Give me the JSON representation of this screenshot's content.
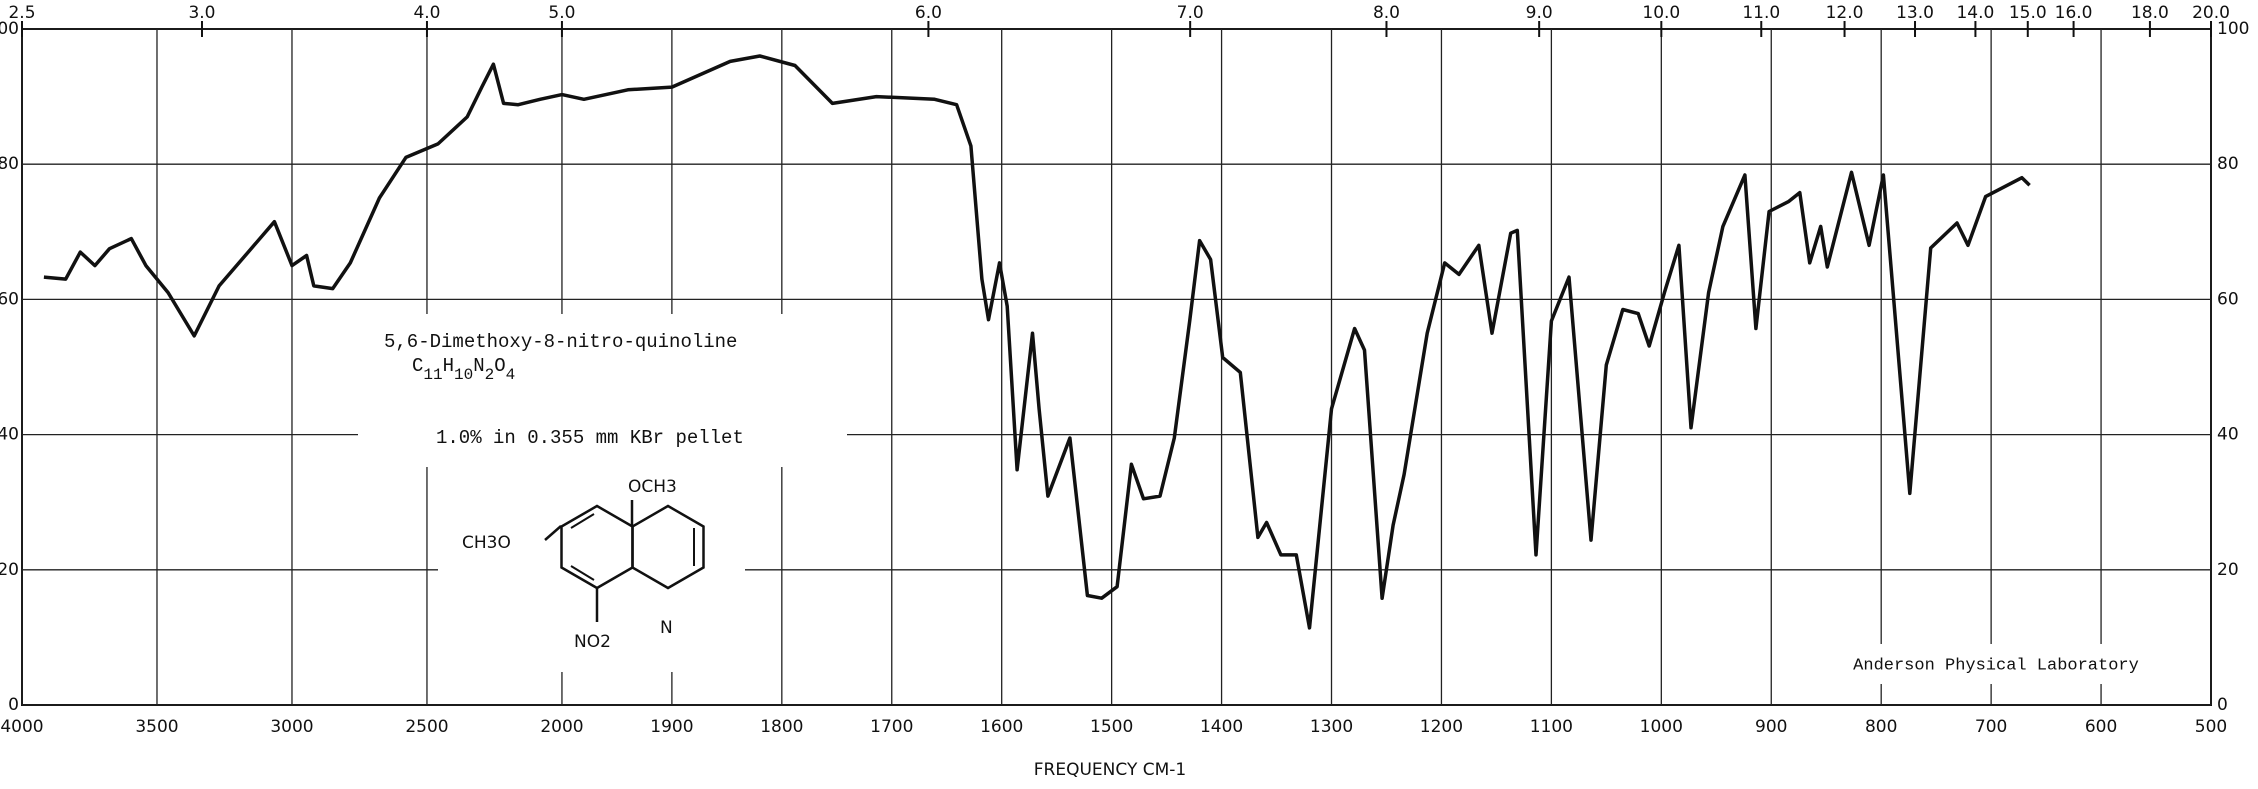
{
  "chart_data": {
    "type": "line",
    "x_label": "FREQUENCY   CM-1",
    "annotation": {
      "compound": "5,6-Dimethoxy-8-nitro-quinoline",
      "formula": [
        "C",
        "11",
        "H",
        "10",
        "N",
        "2",
        "O",
        "4"
      ],
      "sample": "1.0% in 0.355 mm  KBr pellet",
      "structure_labels": {
        "top": "OCH3",
        "left": "CH3O",
        "bottom": "NO2",
        "ring_n": "N"
      }
    },
    "stamp": "Anderson Physical Laboratory",
    "color": "#111111",
    "xlim": [
      4000,
      500
    ],
    "scale_change_at": 2000,
    "ylim": [
      0,
      100
    ],
    "xticks": [
      4000,
      3500,
      3000,
      2500,
      2000,
      1900,
      1800,
      1700,
      1600,
      1500,
      1400,
      1300,
      1200,
      1100,
      1000,
      900,
      800,
      700,
      600,
      500
    ],
    "yticks": [
      0,
      20,
      40,
      60,
      80,
      100
    ],
    "top_ticks": [
      {
        "value": 2.5,
        "label": "2.5"
      },
      {
        "value": 3,
        "label": "3.0"
      },
      {
        "value": 4,
        "label": "4.0"
      },
      {
        "value": 5,
        "label": "5.0"
      },
      {
        "value": 6,
        "label": "6.0"
      },
      {
        "value": 7,
        "label": "7.0"
      },
      {
        "value": 8,
        "label": "8.0"
      },
      {
        "value": 9,
        "label": "9.0"
      },
      {
        "value": 10,
        "label": "10.0"
      },
      {
        "value": 11,
        "label": "11.0"
      },
      {
        "value": 12,
        "label": "12.0"
      },
      {
        "value": 13,
        "label": "13.0"
      },
      {
        "value": 14,
        "label": "14.0"
      },
      {
        "value": 15,
        "label": "15.0"
      },
      {
        "value": 16,
        "label": "16.0"
      },
      {
        "value": 18,
        "label": "18.0"
      },
      {
        "value": 20,
        "label": "20.0"
      }
    ],
    "grid": true,
    "x": [
      3919,
      3838,
      3784,
      3730,
      3676,
      3595,
      3541,
      3459,
      3362,
      3270,
      3162,
      3065,
      3000,
      2946,
      2919,
      2849,
      2784,
      2676,
      2578,
      2459,
      2351,
      2297,
      2254,
      2216,
      2162,
      2081,
      2000,
      1980,
      1940,
      1900,
      1847,
      1820,
      1788,
      1754,
      1714,
      1661,
      1641,
      1628,
      1618,
      1612,
      1602,
      1595,
      1586,
      1572,
      1566,
      1558,
      1538,
      1522,
      1509,
      1495,
      1482,
      1471,
      1456,
      1443,
      1429,
      1420,
      1410,
      1399,
      1383,
      1367,
      1359,
      1346,
      1332,
      1320,
      1300,
      1279,
      1270,
      1254,
      1244,
      1234,
      1213,
      1197,
      1184,
      1166,
      1154,
      1137,
      1131,
      1114,
      1100,
      1084,
      1064,
      1050,
      1035,
      1021,
      1011,
      997,
      984,
      973,
      957,
      944,
      924,
      914,
      902,
      884,
      874,
      865,
      855,
      849,
      827,
      811,
      798,
      774,
      755,
      731,
      721,
      705,
      672,
      665
    ],
    "values": [
      63.3,
      63,
      67,
      65,
      67.5,
      69,
      65,
      61,
      54.6,
      62,
      67,
      71.5,
      65,
      66.5,
      62,
      61.6,
      65.4,
      75,
      81,
      83,
      87,
      91.4,
      94.8,
      89,
      88.8,
      89.6,
      90.3,
      89.6,
      91,
      91.4,
      95.2,
      96,
      94.6,
      89,
      90,
      89.6,
      88.8,
      82.7,
      63,
      57,
      65.4,
      59,
      34.8,
      55,
      43.8,
      30.9,
      39.5,
      16.2,
      15.8,
      17.5,
      35.6,
      30.5,
      30.9,
      39.5,
      56.8,
      68.7,
      65.9,
      51.4,
      49.2,
      24.8,
      27,
      22.2,
      22.2,
      11.4,
      43.8,
      55.7,
      52.5,
      15.8,
      26.6,
      34.1,
      55,
      65.4,
      63.7,
      68,
      55,
      69.8,
      70.2,
      22.2,
      56.8,
      63.3,
      24.4,
      50.3,
      58.5,
      57.9,
      53.1,
      61.1,
      68,
      41,
      61,
      70.8,
      78.4,
      55.7,
      73,
      74.5,
      75.8,
      65.4,
      70.8,
      64.8,
      78.8,
      68,
      78.4,
      31.3,
      67.6,
      71.3,
      68,
      75.2,
      78,
      76.9
    ]
  }
}
